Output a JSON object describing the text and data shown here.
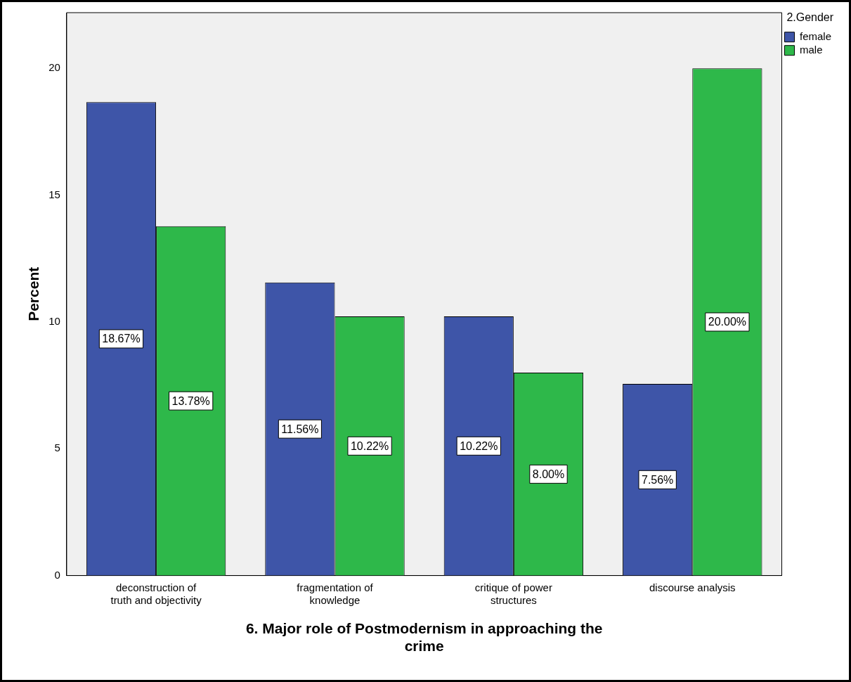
{
  "chart_data": {
    "type": "bar",
    "xlabel": "6. Major role of Postmodernism in approaching the crime",
    "ylabel": "Percent",
    "legend_title": "2.Gender",
    "categories": [
      "deconstruction of truth and objectivity",
      "fragmentation of knowledge",
      "critique of power structures",
      "discourse analysis"
    ],
    "series": [
      {
        "name": "female",
        "color": "#3e55a8",
        "values": [
          18.67,
          11.56,
          10.22,
          7.56
        ],
        "value_labels": [
          "18.67%",
          "11.56%",
          "10.22%",
          "7.56%"
        ]
      },
      {
        "name": "male",
        "color": "#2eb84a",
        "values": [
          13.78,
          10.22,
          8.0,
          20.0
        ],
        "value_labels": [
          "13.78%",
          "10.22%",
          "8.00%",
          "20.00%"
        ]
      }
    ],
    "ylim": [
      0,
      22.2
    ],
    "yticks": [
      0,
      5,
      10,
      15,
      20
    ],
    "grid": false,
    "legend": "top right"
  }
}
